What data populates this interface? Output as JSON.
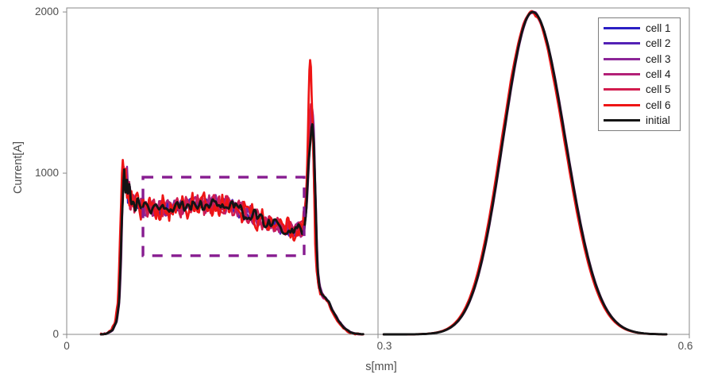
{
  "chart_data": {
    "type": "line",
    "title": "",
    "xlabel": "s[mm]",
    "ylabel": "Current[A]",
    "xlim": [
      0,
      0.6
    ],
    "ylim": [
      0,
      2025
    ],
    "grid": false,
    "legend_position": "top-right",
    "panel_divider_s": 0.3,
    "x_ticks": [
      {
        "value": 0,
        "label": "0"
      },
      {
        "value": 0.3,
        "label": "0.3"
      },
      {
        "value": 0.6,
        "label": "0.6"
      }
    ],
    "y_ticks": [
      {
        "value": 0,
        "label": "0"
      },
      {
        "value": 1000,
        "label": "1000"
      },
      {
        "value": 2000,
        "label": "2000"
      }
    ],
    "style": {
      "axis_color": "#8a8a8a",
      "text_color": "#4d4d4d",
      "background": "#ffffff"
    },
    "series": [
      {
        "name": "cell 1",
        "color": "#2a1fc4",
        "width": 2.3,
        "seed": 101,
        "noise_amp": 46,
        "end_spike": 1350,
        "overshoot": 1020,
        "gauss_noise": 5,
        "x_shift": 0
      },
      {
        "name": "cell 2",
        "color": "#5321b5",
        "width": 2.3,
        "seed": 202,
        "noise_amp": 50,
        "end_spike": 1365,
        "overshoot": 1025,
        "gauss_noise": 5,
        "x_shift": 0
      },
      {
        "name": "cell 3",
        "color": "#8c2597",
        "width": 2.4,
        "seed": 303,
        "noise_amp": 55,
        "end_spike": 1385,
        "overshoot": 1032,
        "gauss_noise": 6,
        "x_shift": 0.0004
      },
      {
        "name": "cell 4",
        "color": "#b32077",
        "width": 2.4,
        "seed": 404,
        "noise_amp": 60,
        "end_spike": 1400,
        "overshoot": 1040,
        "gauss_noise": 8,
        "x_shift": -0.0004
      },
      {
        "name": "cell 5",
        "color": "#d21c4e",
        "width": 2.5,
        "seed": 505,
        "noise_amp": 70,
        "end_spike": 1470,
        "overshoot": 1055,
        "gauss_noise": 10,
        "x_shift": -0.0008
      },
      {
        "name": "cell 6",
        "color": "#ee1515",
        "width": 2.7,
        "seed": 606,
        "noise_amp": 88,
        "end_spike": 1700,
        "overshoot": 1070,
        "gauss_noise": 17,
        "x_shift": -0.0012
      },
      {
        "name": "initial",
        "color": "#141414",
        "width": 2.9,
        "seed": 707,
        "noise_amp": 40,
        "end_spike": 1330,
        "overshoot": 1015,
        "gauss_noise": 0,
        "x_shift": 0
      }
    ],
    "flat_top_profile": {
      "panel": "left",
      "s_range": [
        0.033,
        0.286
      ],
      "plateau_current_approx": [
        650,
        830
      ],
      "points": [
        [
          0.033,
          0
        ],
        [
          0.039,
          6
        ],
        [
          0.044,
          25
        ],
        [
          0.048,
          80
        ],
        [
          0.0505,
          200
        ],
        [
          0.052,
          430
        ],
        [
          0.0535,
          780
        ],
        [
          0.0545,
          950
        ],
        [
          0.0555,
          1015
        ],
        [
          0.0565,
          870
        ],
        [
          0.0578,
          1020
        ],
        [
          0.059,
          840
        ],
        [
          0.0605,
          930
        ],
        [
          0.062,
          800
        ],
        [
          0.064,
          860
        ],
        [
          0.066,
          780
        ],
        [
          0.068,
          820
        ],
        [
          0.071,
          800
        ],
        [
          0.078,
          780
        ],
        [
          0.085,
          772
        ],
        [
          0.093,
          785
        ],
        [
          0.1,
          778
        ],
        [
          0.108,
          792
        ],
        [
          0.115,
          788
        ],
        [
          0.122,
          800
        ],
        [
          0.13,
          805
        ],
        [
          0.138,
          812
        ],
        [
          0.145,
          815
        ],
        [
          0.152,
          805
        ],
        [
          0.158,
          795
        ],
        [
          0.165,
          772
        ],
        [
          0.172,
          752
        ],
        [
          0.178,
          742
        ],
        [
          0.185,
          722
        ],
        [
          0.192,
          700
        ],
        [
          0.198,
          688
        ],
        [
          0.204,
          668
        ],
        [
          0.21,
          655
        ],
        [
          0.215,
          650
        ],
        [
          0.219,
          645
        ],
        [
          0.223,
          655
        ],
        [
          0.225,
          640
        ],
        [
          0.227,
          655
        ],
        [
          0.229,
          680
        ],
        [
          0.231,
          800
        ],
        [
          0.233,
          1050
        ],
        [
          0.235,
          1250
        ],
        [
          0.2365,
          1330
        ],
        [
          0.238,
          1230
        ],
        [
          0.2395,
          900
        ],
        [
          0.2408,
          550
        ],
        [
          0.2419,
          380
        ],
        [
          0.2435,
          300
        ],
        [
          0.2457,
          250
        ],
        [
          0.248,
          232
        ],
        [
          0.251,
          210
        ],
        [
          0.2532,
          195
        ],
        [
          0.2556,
          155
        ],
        [
          0.258,
          128
        ],
        [
          0.2602,
          105
        ],
        [
          0.2625,
          80
        ],
        [
          0.2648,
          60
        ],
        [
          0.2675,
          40
        ],
        [
          0.2701,
          28
        ],
        [
          0.2728,
          15
        ],
        [
          0.2755,
          8
        ],
        [
          0.28,
          2
        ],
        [
          0.286,
          0
        ]
      ],
      "end_spike_center": 0.2355,
      "overshoot_center": 0.0558
    },
    "gaussian_pulse": {
      "panel": "right",
      "center": 0.449,
      "sigma_left": 0.0285,
      "sigma_right": 0.0315,
      "peak": 2000,
      "s_range": [
        0.3055,
        0.578
      ]
    },
    "roi_box": {
      "s_range": [
        0.0735,
        0.2288
      ],
      "current_range": [
        488,
        975
      ],
      "color": "#871c90",
      "line_style": "dashed"
    }
  }
}
